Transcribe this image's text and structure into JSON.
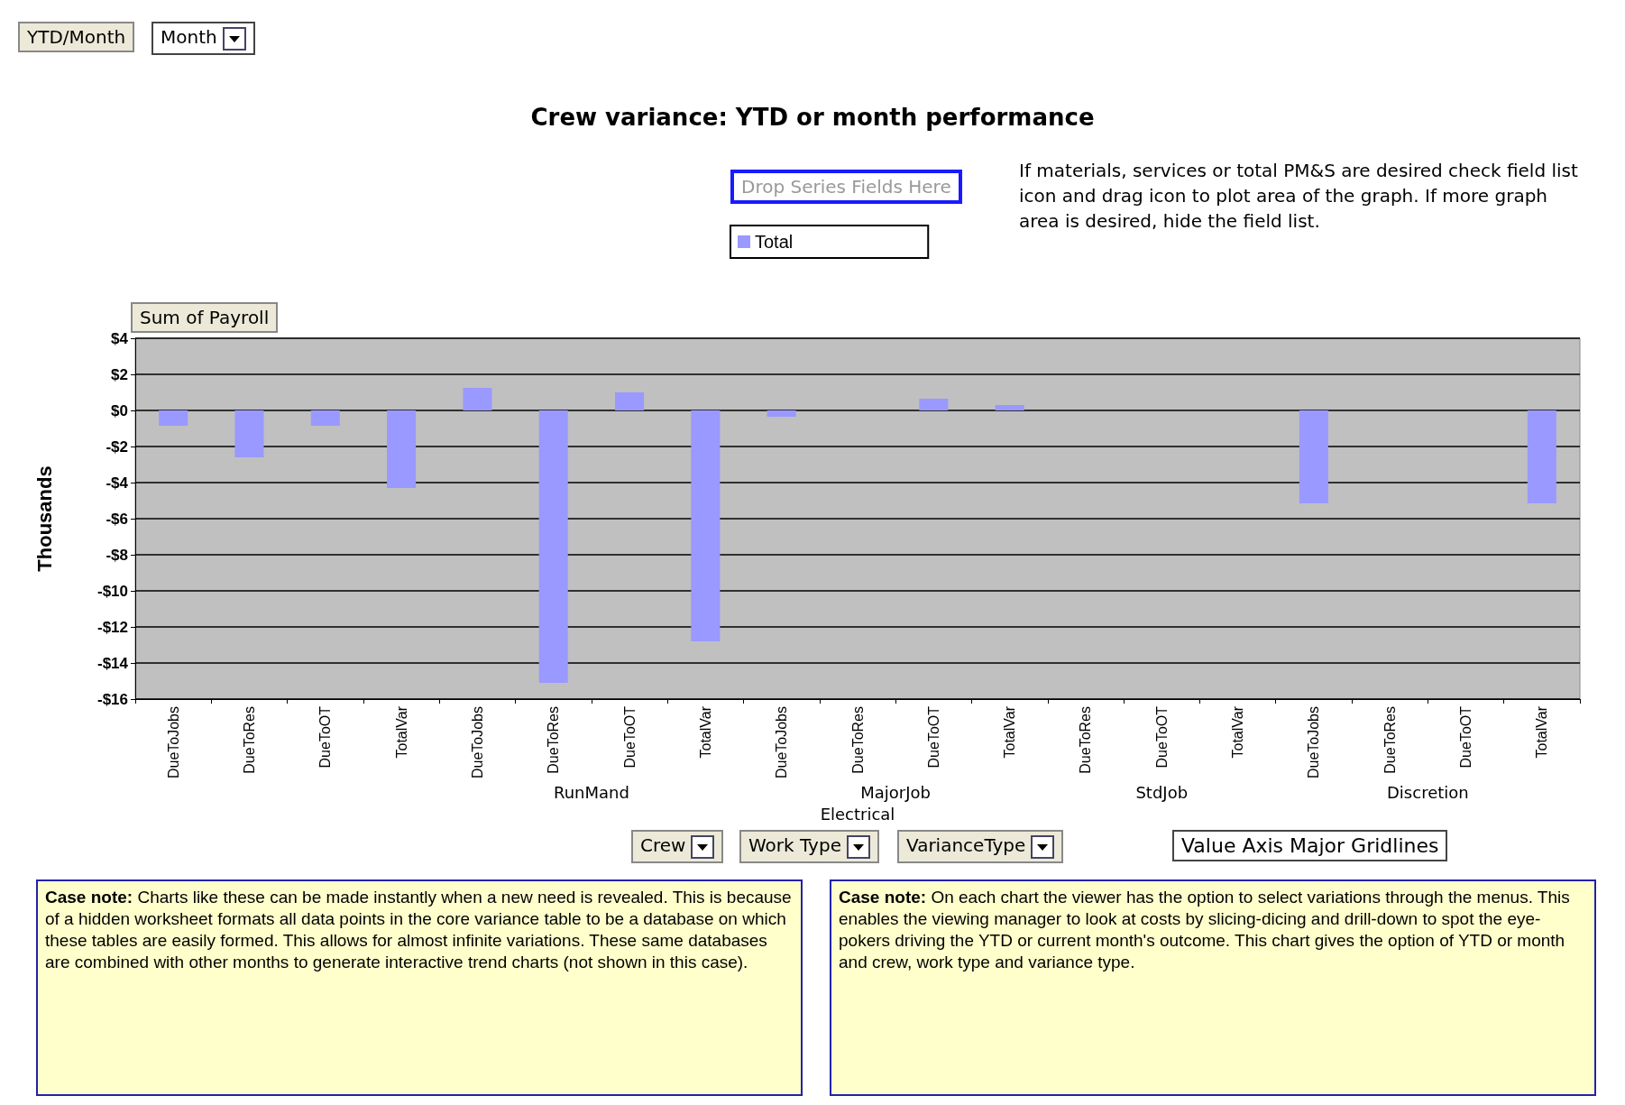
{
  "chart_data": {
    "type": "bar",
    "title": "Crew variance: YTD or month performance",
    "ylabel": "Thousands",
    "categories": [
      "DueToJobs",
      "DueToRes",
      "DueToOT",
      "TotalVar",
      "DueToJobs",
      "DueToRes",
      "DueToOT",
      "TotalVar",
      "DueToJobs",
      "DueToRes",
      "DueToOT",
      "TotalVar",
      "DueToRes",
      "DueToOT",
      "TotalVar",
      "DueToJobs",
      "DueToRes",
      "DueToOT",
      "TotalVar"
    ],
    "series": [
      {
        "name": "Total",
        "color": "#9999ff",
        "values": [
          -0.85,
          -2.6,
          -0.85,
          -4.3,
          1.25,
          -15.1,
          1.0,
          -12.8,
          -0.35,
          0,
          0.65,
          0.3,
          0,
          0,
          0,
          -5.15,
          0,
          0,
          -5.15
        ]
      }
    ],
    "ylim": [
      -16,
      4
    ],
    "yticks": [
      {
        "value": -16,
        "label": "-$16"
      },
      {
        "value": -14,
        "label": "-$14"
      },
      {
        "value": -12,
        "label": "-$12"
      },
      {
        "value": -10,
        "label": "-$10"
      },
      {
        "value": -8,
        "label": "-$8"
      },
      {
        "value": -6,
        "label": "-$6"
      },
      {
        "value": -4,
        "label": "-$4"
      },
      {
        "value": -2,
        "label": "-$2"
      },
      {
        "value": 0,
        "label": "$0"
      },
      {
        "value": 2,
        "label": "$2"
      },
      {
        "value": 4,
        "label": "$4"
      }
    ],
    "grid": "y",
    "legend": "top",
    "annotations": [
      "YTD/Month",
      "Month",
      "Drop Series Fields Here",
      "Sum of Payroll",
      "Crew",
      "Work Type",
      "VarianceType",
      "Value Axis Major Gridlines",
      "RunMand",
      "MajorJob",
      "StdJob",
      "Discretion",
      "Electrical",
      "If materials, services or total PM&S are desired check field list icon and drag icon to plot area of the graph. If more graph area is desired, hide the field list.",
      "Case note: Charts like these can be made instantly when a new need is revealed.  This is because of a hidden worksheet formats all data points in the core variance table to be a database on which these tables are easily formed.  This allows for almost infinite variations.    These same databases are combined with other months to generate interactive trend charts (not shown in this case).",
      "Case note: On each chart the viewer has the option to select variations through the menus. This enables the viewing manager to look at costs by slicing-dicing and drill-down to spot the eye-pokers driving the YTD or current month's outcome.    This chart gives the option of YTD or month and crew, work type and variance type."
    ]
  }
}
